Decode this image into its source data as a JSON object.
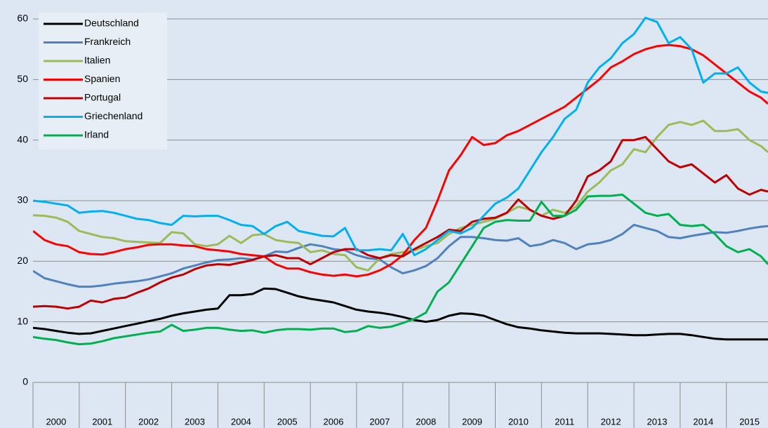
{
  "chart_data": {
    "type": "line",
    "x": [
      2000,
      2000.25,
      2000.5,
      2000.75,
      2001,
      2001.25,
      2001.5,
      2001.75,
      2002,
      2002.25,
      2002.5,
      2002.75,
      2003,
      2003.25,
      2003.5,
      2003.75,
      2004,
      2004.25,
      2004.5,
      2004.75,
      2005,
      2005.25,
      2005.5,
      2005.75,
      2006,
      2006.25,
      2006.5,
      2006.75,
      2007,
      2007.25,
      2007.5,
      2007.75,
      2008,
      2008.25,
      2008.5,
      2008.75,
      2009,
      2009.25,
      2009.5,
      2009.75,
      2010,
      2010.25,
      2010.5,
      2010.75,
      2011,
      2011.25,
      2011.5,
      2011.75,
      2012,
      2012.25,
      2012.5,
      2012.75,
      2013,
      2013.25,
      2013.5,
      2013.75,
      2014,
      2014.25,
      2014.5,
      2014.75,
      2015,
      2015.25,
      2015.5,
      2015.75,
      2015.9
    ],
    "xlim": [
      2000,
      2015.9
    ],
    "xticks": [
      2000,
      2001,
      2002,
      2003,
      2004,
      2005,
      2006,
      2007,
      2008,
      2009,
      2010,
      2011,
      2012,
      2013,
      2014,
      2015
    ],
    "ylim": [
      0,
      60
    ],
    "yticks": [
      0,
      10,
      20,
      30,
      40,
      50,
      60
    ],
    "grid": true,
    "legend": "top-left",
    "series": [
      {
        "name": "Deutschland",
        "color": "#000000",
        "values": [
          9,
          8.8,
          8.5,
          8.2,
          8,
          8.1,
          8.5,
          8.9,
          9.3,
          9.7,
          10.1,
          10.5,
          11,
          11.4,
          11.7,
          12,
          12.2,
          14.4,
          14.4,
          14.6,
          15.5,
          15.4,
          14.8,
          14.2,
          13.8,
          13.5,
          13.2,
          12.6,
          12,
          11.7,
          11.5,
          11.2,
          10.8,
          10.3,
          10,
          10.3,
          11,
          11.4,
          11.3,
          11,
          10.3,
          9.6,
          9.1,
          8.9,
          8.6,
          8.4,
          8.2,
          8.1,
          8.1,
          8.1,
          8,
          7.9,
          7.8,
          7.8,
          7.9,
          8,
          8,
          7.8,
          7.5,
          7.2,
          7.1,
          7.1,
          7.1,
          7.1,
          7.1
        ]
      },
      {
        "name": "Frankreich",
        "color": "#4f81bd",
        "values": [
          18.4,
          17.2,
          16.7,
          16.2,
          15.8,
          15.8,
          16,
          16.3,
          16.5,
          16.7,
          17,
          17.5,
          18,
          18.8,
          19.3,
          19.8,
          20.2,
          20.3,
          20.5,
          20.3,
          20.8,
          21.6,
          21.5,
          22.2,
          22.8,
          22.5,
          22,
          21.8,
          21,
          20.5,
          20.3,
          19,
          18,
          18.5,
          19.2,
          20.5,
          22.5,
          24,
          24,
          23.8,
          23.5,
          23.4,
          23.8,
          22.5,
          22.8,
          23.5,
          23,
          22,
          22.8,
          23,
          23.5,
          24.5,
          26,
          25.5,
          25,
          24,
          23.8,
          24.2,
          24.5,
          24.8,
          24.7,
          25,
          25.4,
          25.7,
          25.8
        ]
      },
      {
        "name": "Italien",
        "color": "#9bbb59",
        "values": [
          27.6,
          27.5,
          27.2,
          26.5,
          25,
          24.5,
          24,
          23.8,
          23.3,
          23.2,
          23.1,
          23,
          24.8,
          24.6,
          22.8,
          22.5,
          22.8,
          24.2,
          23,
          24.3,
          24.5,
          23.5,
          23.2,
          23,
          21.5,
          21.8,
          21.2,
          21,
          19,
          18.5,
          20.5,
          21.2,
          21.5,
          21.8,
          22.5,
          23,
          24.5,
          25.5,
          26,
          26.5,
          27,
          28,
          29,
          28.5,
          27.5,
          28.5,
          28,
          29,
          31.5,
          33,
          35,
          36,
          38.5,
          38,
          40.5,
          42.5,
          43,
          42.5,
          43.2,
          41.5,
          41.5,
          41.8,
          40,
          39,
          38
        ]
      },
      {
        "name": "Spanien",
        "color": "#ff0000",
        "values": [
          25,
          23.5,
          22.8,
          22.5,
          21.5,
          21.2,
          21.1,
          21.5,
          22,
          22.3,
          22.7,
          22.8,
          22.8,
          22.6,
          22.5,
          22,
          21.8,
          21.6,
          21.2,
          21,
          20.8,
          19.5,
          18.8,
          18.8,
          18.2,
          17.8,
          17.6,
          17.8,
          17.5,
          17.8,
          18.5,
          19.5,
          21,
          23.5,
          25.5,
          30,
          35,
          37.5,
          40.5,
          39.2,
          39.5,
          40.8,
          41.5,
          42.5,
          43.5,
          44.5,
          45.5,
          47,
          48.5,
          50,
          52,
          53,
          54.2,
          55,
          55.5,
          55.7,
          55.5,
          55,
          54,
          52.5,
          51,
          49.5,
          48,
          47,
          46
        ]
      },
      {
        "name": "Portugal",
        "color": "#c00000",
        "values": [
          12.5,
          12.6,
          12.5,
          12.2,
          12.5,
          13.5,
          13.2,
          13.8,
          14,
          14.8,
          15.5,
          16.5,
          17.3,
          17.8,
          18.7,
          19.3,
          19.5,
          19.4,
          19.8,
          20.2,
          20.8,
          21,
          20.5,
          20.5,
          19.5,
          20.5,
          21.5,
          22,
          22,
          21,
          20.5,
          21,
          20.8,
          22,
          23,
          24,
          25.2,
          25,
          26.5,
          27,
          27.2,
          28,
          30.2,
          28.5,
          27.5,
          27,
          27.5,
          30,
          34,
          35,
          36.5,
          40,
          40,
          40.5,
          38.5,
          36.5,
          35.5,
          36,
          34.5,
          33,
          34.2,
          32,
          31,
          31.8,
          31.5
        ]
      },
      {
        "name": "Griechenland",
        "color": "#00b0f0",
        "values": [
          30,
          29.8,
          29.5,
          29.2,
          28,
          28.2,
          28.3,
          28,
          27.5,
          27,
          26.8,
          26.3,
          26,
          27.5,
          27.4,
          27.5,
          27.5,
          26.8,
          26,
          25.8,
          24.5,
          25.8,
          26.5,
          25,
          24.6,
          24.2,
          24.1,
          25.5,
          21.8,
          21.8,
          22,
          21.8,
          24.5,
          21,
          22,
          23.5,
          25,
          24.6,
          25.5,
          27.5,
          29.5,
          30.5,
          32,
          35,
          38,
          40.5,
          43.5,
          45,
          49.5,
          52,
          53.5,
          56,
          57.5,
          60.2,
          59.5,
          56,
          57,
          55,
          49.5,
          51,
          51,
          52,
          49.5,
          48,
          47.8
        ]
      },
      {
        "name": "Irland",
        "color": "#00b050",
        "values": [
          7.5,
          7.2,
          7,
          6.6,
          6.3,
          6.4,
          6.8,
          7.3,
          7.6,
          7.9,
          8.2,
          8.4,
          9.5,
          8.5,
          8.7,
          9,
          9,
          8.7,
          8.5,
          8.6,
          8.2,
          8.6,
          8.8,
          8.8,
          8.7,
          8.9,
          8.9,
          8.3,
          8.5,
          9.3,
          9,
          9.2,
          9.8,
          10.5,
          11.5,
          15,
          16.5,
          19.5,
          22.5,
          25.5,
          26.5,
          26.8,
          26.7,
          26.7,
          29.8,
          27.5,
          27.5,
          28.5,
          30.7,
          30.8,
          30.8,
          31,
          29.5,
          28,
          27.5,
          27.8,
          26,
          25.8,
          26,
          24.5,
          22.5,
          21.5,
          22,
          20.8,
          19.5
        ]
      }
    ]
  }
}
